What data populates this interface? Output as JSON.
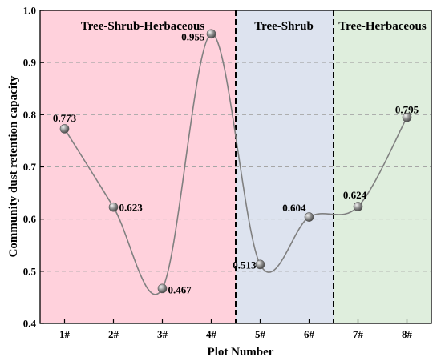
{
  "chart_data": {
    "type": "line",
    "title": "",
    "xlabel": "Plot Number",
    "ylabel": "Community dust retention capacity",
    "categories": [
      "1#",
      "2#",
      "3#",
      "4#",
      "5#",
      "6#",
      "7#",
      "8#"
    ],
    "values": [
      0.773,
      0.623,
      0.467,
      0.955,
      0.513,
      0.604,
      0.624,
      0.795
    ],
    "value_labels": [
      "0.773",
      "0.623",
      "0.467",
      "0.955",
      "0.513",
      "0.604",
      "0.624",
      "0.795"
    ],
    "ylim": [
      0.4,
      1.0
    ],
    "yticks": [
      "0.4",
      "0.5",
      "0.6",
      "0.7",
      "0.8",
      "0.9",
      "1.0"
    ],
    "grid": "horizontal dashed",
    "smoothed": true,
    "line_color": "#808080",
    "marker_color": "#8c8c8c",
    "regions": [
      {
        "label": "Tree-Shrub-Herbaceous",
        "x_start": 0.5,
        "x_end": 4.5,
        "color": "#ffd1dc"
      },
      {
        "label": "Tree-Shrub",
        "x_start": 4.5,
        "x_end": 6.5,
        "color": "#dde3ef"
      },
      {
        "label": "Tree-Herbaceous",
        "x_start": 6.5,
        "x_end": 8.5,
        "color": "#dfeedd"
      }
    ]
  }
}
